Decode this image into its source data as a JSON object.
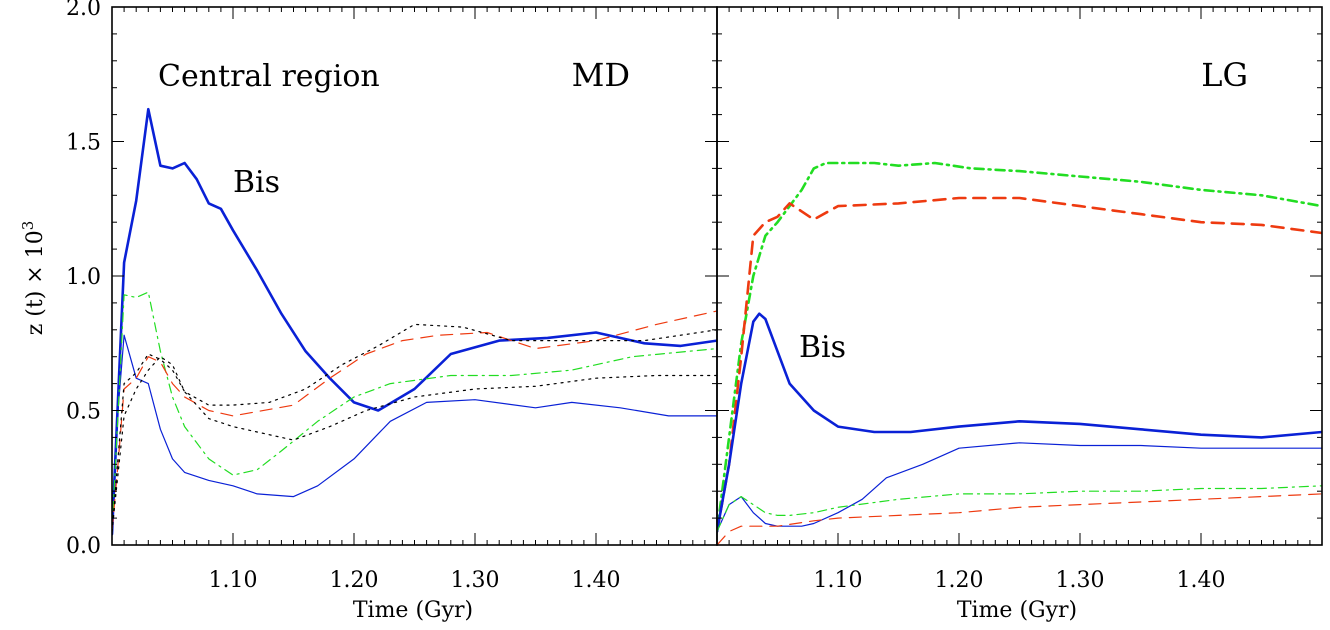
{
  "figure": {
    "ylabel_main": "z (t) × 10",
    "ylabel_exp": "3",
    "yticks": [
      "0.0",
      "0.5",
      "1.0",
      "1.5",
      "2.0"
    ]
  },
  "colors": {
    "blue": "#0a21d6",
    "green": "#22dd22",
    "red": "#ee3a10",
    "black": "#000000"
  },
  "chart_data": [
    {
      "type": "line",
      "panel_label": "MD",
      "annotation_region": "Central region",
      "annotation_series": "Bis",
      "xlabel": "Time (Gyr)",
      "xticks": [
        "1.10",
        "1.20",
        "1.30",
        "1.40"
      ],
      "xlim": [
        1.0,
        1.5
      ],
      "ylim": [
        0,
        2.0
      ],
      "series": [
        {
          "color": "blue",
          "width": "thick",
          "dash": "solid",
          "x": [
            1.0,
            1.01,
            1.02,
            1.03,
            1.04,
            1.05,
            1.06,
            1.07,
            1.08,
            1.09,
            1.1,
            1.12,
            1.14,
            1.16,
            1.18,
            1.2,
            1.22,
            1.25,
            1.28,
            1.32,
            1.36,
            1.4,
            1.44,
            1.47,
            1.5
          ],
          "y": [
            0.04,
            1.05,
            1.28,
            1.62,
            1.41,
            1.4,
            1.42,
            1.36,
            1.27,
            1.25,
            1.17,
            1.02,
            0.86,
            0.72,
            0.62,
            0.53,
            0.5,
            0.58,
            0.71,
            0.76,
            0.77,
            0.79,
            0.75,
            0.74,
            0.76
          ]
        },
        {
          "color": "blue",
          "width": "thin",
          "dash": "solid",
          "x": [
            1.0,
            1.005,
            1.01,
            1.02,
            1.03,
            1.04,
            1.05,
            1.06,
            1.08,
            1.1,
            1.12,
            1.15,
            1.17,
            1.2,
            1.23,
            1.26,
            1.3,
            1.35,
            1.38,
            1.42,
            1.46,
            1.5
          ],
          "y": [
            0.05,
            0.5,
            0.78,
            0.62,
            0.6,
            0.43,
            0.32,
            0.27,
            0.24,
            0.22,
            0.19,
            0.18,
            0.22,
            0.32,
            0.46,
            0.53,
            0.54,
            0.51,
            0.53,
            0.51,
            0.48,
            0.48
          ]
        },
        {
          "color": "green",
          "width": "thin",
          "dash": "dashdot",
          "x": [
            1.0,
            1.01,
            1.02,
            1.03,
            1.04,
            1.05,
            1.06,
            1.08,
            1.1,
            1.12,
            1.14,
            1.17,
            1.2,
            1.23,
            1.28,
            1.33,
            1.38,
            1.43,
            1.5
          ],
          "y": [
            0.05,
            0.93,
            0.92,
            0.94,
            0.72,
            0.55,
            0.44,
            0.32,
            0.26,
            0.28,
            0.35,
            0.46,
            0.55,
            0.6,
            0.63,
            0.63,
            0.65,
            0.7,
            0.73
          ]
        },
        {
          "color": "red",
          "width": "thin",
          "dash": "longdash",
          "x": [
            1.0,
            1.005,
            1.01,
            1.02,
            1.03,
            1.04,
            1.05,
            1.06,
            1.08,
            1.1,
            1.15,
            1.18,
            1.21,
            1.24,
            1.27,
            1.31,
            1.35,
            1.4,
            1.45,
            1.5
          ],
          "y": [
            0.05,
            0.3,
            0.58,
            0.62,
            0.7,
            0.68,
            0.6,
            0.55,
            0.5,
            0.48,
            0.52,
            0.62,
            0.71,
            0.76,
            0.78,
            0.79,
            0.73,
            0.76,
            0.82,
            0.87
          ]
        },
        {
          "color": "black",
          "width": "thin",
          "dash": "dotted",
          "x": [
            1.0,
            1.01,
            1.02,
            1.03,
            1.04,
            1.05,
            1.06,
            1.08,
            1.1,
            1.13,
            1.16,
            1.19,
            1.22,
            1.25,
            1.29,
            1.33,
            1.38,
            1.44,
            1.5
          ],
          "y": [
            0.05,
            0.6,
            0.64,
            0.71,
            0.69,
            0.65,
            0.57,
            0.52,
            0.52,
            0.53,
            0.58,
            0.67,
            0.74,
            0.82,
            0.81,
            0.76,
            0.76,
            0.76,
            0.8
          ]
        },
        {
          "color": "black",
          "width": "thin",
          "dash": "dotted",
          "x": [
            1.0,
            1.01,
            1.02,
            1.03,
            1.04,
            1.05,
            1.06,
            1.08,
            1.1,
            1.12,
            1.15,
            1.18,
            1.21,
            1.25,
            1.3,
            1.35,
            1.4,
            1.45,
            1.5
          ],
          "y": [
            0.05,
            0.48,
            0.58,
            0.65,
            0.7,
            0.67,
            0.57,
            0.47,
            0.44,
            0.42,
            0.39,
            0.44,
            0.5,
            0.55,
            0.58,
            0.59,
            0.62,
            0.63,
            0.63
          ]
        }
      ]
    },
    {
      "type": "line",
      "panel_label": "LG",
      "annotation_series": "Bis",
      "xlabel": "Time (Gyr)",
      "xticks": [
        "1.10",
        "1.20",
        "1.30",
        "1.40"
      ],
      "xlim": [
        1.0,
        1.5
      ],
      "ylim": [
        0,
        2.0
      ],
      "series": [
        {
          "color": "green",
          "width": "thick",
          "dash": "dashdot",
          "x": [
            1.0,
            1.01,
            1.02,
            1.03,
            1.04,
            1.05,
            1.06,
            1.07,
            1.08,
            1.09,
            1.1,
            1.13,
            1.15,
            1.18,
            1.21,
            1.25,
            1.3,
            1.35,
            1.4,
            1.45,
            1.5
          ],
          "y": [
            0.05,
            0.4,
            0.75,
            1.0,
            1.15,
            1.2,
            1.26,
            1.32,
            1.4,
            1.42,
            1.42,
            1.42,
            1.41,
            1.42,
            1.4,
            1.39,
            1.37,
            1.35,
            1.32,
            1.3,
            1.26
          ]
        },
        {
          "color": "red",
          "width": "thick",
          "dash": "longdash",
          "x": [
            1.0,
            1.01,
            1.02,
            1.03,
            1.04,
            1.05,
            1.06,
            1.07,
            1.08,
            1.1,
            1.15,
            1.2,
            1.25,
            1.3,
            1.35,
            1.4,
            1.45,
            1.5
          ],
          "y": [
            0.05,
            0.3,
            0.7,
            1.15,
            1.2,
            1.22,
            1.27,
            1.24,
            1.21,
            1.26,
            1.27,
            1.29,
            1.29,
            1.26,
            1.23,
            1.2,
            1.19,
            1.16
          ]
        },
        {
          "color": "blue",
          "width": "thick",
          "dash": "solid",
          "x": [
            1.0,
            1.01,
            1.02,
            1.03,
            1.035,
            1.04,
            1.05,
            1.06,
            1.08,
            1.1,
            1.13,
            1.16,
            1.2,
            1.25,
            1.3,
            1.35,
            1.4,
            1.45,
            1.5
          ],
          "y": [
            0.05,
            0.3,
            0.6,
            0.83,
            0.86,
            0.84,
            0.72,
            0.6,
            0.5,
            0.44,
            0.42,
            0.42,
            0.44,
            0.46,
            0.45,
            0.43,
            0.41,
            0.4,
            0.42
          ]
        },
        {
          "color": "blue",
          "width": "thin",
          "dash": "solid",
          "x": [
            1.0,
            1.01,
            1.02,
            1.03,
            1.04,
            1.05,
            1.06,
            1.07,
            1.08,
            1.1,
            1.12,
            1.14,
            1.17,
            1.2,
            1.25,
            1.3,
            1.35,
            1.4,
            1.45,
            1.5
          ],
          "y": [
            0.05,
            0.15,
            0.18,
            0.12,
            0.08,
            0.07,
            0.07,
            0.07,
            0.08,
            0.12,
            0.17,
            0.25,
            0.3,
            0.36,
            0.38,
            0.37,
            0.37,
            0.36,
            0.36,
            0.36
          ]
        },
        {
          "color": "green",
          "width": "thin",
          "dash": "dashdot",
          "x": [
            1.0,
            1.01,
            1.02,
            1.03,
            1.04,
            1.05,
            1.06,
            1.08,
            1.1,
            1.15,
            1.2,
            1.25,
            1.3,
            1.35,
            1.4,
            1.45,
            1.5
          ],
          "y": [
            0.05,
            0.15,
            0.18,
            0.15,
            0.12,
            0.11,
            0.11,
            0.12,
            0.14,
            0.17,
            0.19,
            0.19,
            0.2,
            0.2,
            0.21,
            0.21,
            0.22
          ]
        },
        {
          "color": "red",
          "width": "thin",
          "dash": "longdash",
          "x": [
            1.0,
            1.01,
            1.02,
            1.03,
            1.05,
            1.08,
            1.1,
            1.15,
            1.2,
            1.25,
            1.3,
            1.35,
            1.4,
            1.45,
            1.5
          ],
          "y": [
            0.0,
            0.05,
            0.07,
            0.07,
            0.07,
            0.09,
            0.1,
            0.11,
            0.12,
            0.14,
            0.15,
            0.16,
            0.17,
            0.18,
            0.19
          ]
        }
      ]
    }
  ]
}
